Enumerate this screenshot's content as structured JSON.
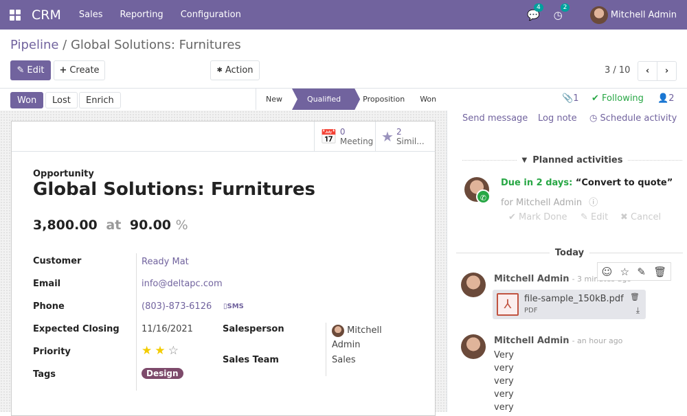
{
  "navbar": {
    "app": "CRM",
    "menus": [
      "Sales",
      "Reporting",
      "Configuration"
    ],
    "messages_count": "4",
    "activities_count": "2",
    "user": "Mitchell Admin",
    "color": "#71639e"
  },
  "breadcrumb": {
    "parent": "Pipeline",
    "separator": " / ",
    "current": "Global Solutions: Furnitures"
  },
  "toolbar": {
    "edit": "Edit",
    "create": "Create",
    "action": "Action",
    "pager": "3 / 10"
  },
  "statusbar": {
    "buttons": [
      "Won",
      "Lost",
      "Enrich"
    ],
    "stages": [
      "New",
      "Qualified",
      "Proposition",
      "Won"
    ],
    "active_stage": "Qualified"
  },
  "smart_buttons": [
    {
      "count": "0",
      "label": "Meeting",
      "icon": "calendar-icon"
    },
    {
      "count": "2",
      "label": "Simil...",
      "icon": "star-icon"
    }
  ],
  "form": {
    "type": "Opportunity",
    "name": "Global Solutions: Furnitures",
    "revenue": "3,800.00",
    "at": "at",
    "probability": "90.00",
    "pct": "%",
    "fields": {
      "customer_label": "Customer",
      "customer": "Ready Mat",
      "email_label": "Email",
      "email": "info@deltapc.com",
      "phone_label": "Phone",
      "phone": "(803)-873-6126",
      "sms": "SMS",
      "closing_label": "Expected Closing",
      "closing": "11/16/2021",
      "priority_label": "Priority",
      "priority": 2,
      "priority_max": 3,
      "tags_label": "Tags",
      "tag": "Design",
      "salesperson_label": "Salesperson",
      "salesperson": "Mitchell Admin",
      "team_label": "Sales Team",
      "team": "Sales"
    }
  },
  "chatter": {
    "attachments": "1",
    "following": "Following",
    "followers": "2",
    "send_message": "Send message",
    "log_note": "Log note",
    "schedule": "Schedule activity",
    "planned_title": "Planned activities",
    "activity": {
      "due": "Due in 2 days:",
      "summary": "“Convert to quote”",
      "for": "for Mitchell Admin",
      "mark_done": "Mark Done",
      "edit": "Edit",
      "cancel": "Cancel"
    },
    "today": "Today",
    "messages": [
      {
        "author": "Mitchell Admin",
        "time": "- 3 minutes ago",
        "attachment": {
          "name": "file-sample_150kB.pdf",
          "type": "PDF"
        }
      },
      {
        "author": "Mitchell Admin",
        "time": "- an hour ago",
        "lines": [
          "Very",
          "very",
          "very",
          "very",
          "very"
        ]
      }
    ]
  }
}
